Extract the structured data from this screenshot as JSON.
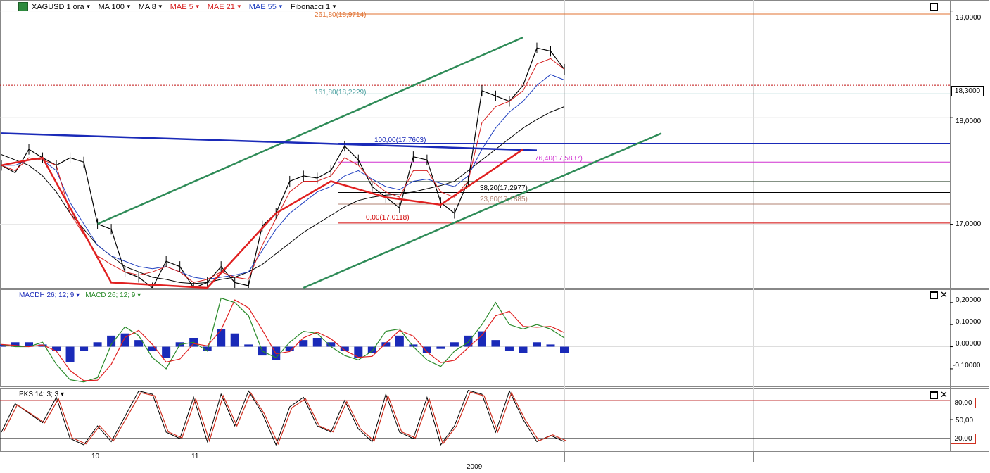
{
  "header": {
    "symbol": "XAGUSD 1 óra",
    "indicators": [
      "MA 100",
      "MA 8",
      "MAE 5",
      "MAE 21",
      "MAE 55",
      "Fibonacci 1"
    ],
    "indicator_colors": [
      "#000000",
      "#000000",
      "#d62020",
      "#d62020",
      "#2040c0",
      "#000000"
    ]
  },
  "price_axis": {
    "labels": [
      "19,0000",
      "18,0000",
      "17,0000"
    ],
    "current_price": "18,3000"
  },
  "fibonacci": [
    {
      "label": "261,80(18,9714)",
      "color": "#e07030"
    },
    {
      "label": "161,80(18,2229)",
      "color": "#4aa0a0"
    },
    {
      "label": "100,00(17,7603)",
      "color": "#1a2ab8"
    },
    {
      "label": "76,40(17,5837)",
      "color": "#d030d0"
    },
    {
      "label": "38,20(17,2977)",
      "color": "#000000"
    },
    {
      "label": "23,60(17,1885)",
      "color": "#b08070"
    },
    {
      "label": "0,00(17,0118)",
      "color": "#d00000"
    }
  ],
  "macd_panel": {
    "legend": [
      "MACDH 26; 12; 9",
      "MACD 26; 12; 9"
    ],
    "legend_colors": [
      "#1a2ab8",
      "#2a8a2a"
    ],
    "axis_labels": [
      "0,20000",
      "0,10000",
      "0,00000",
      "-0,10000"
    ]
  },
  "pks_panel": {
    "legend": "PKS 14; 3; 3",
    "axis_labels": [
      "80,00",
      "50,00",
      "20,00"
    ]
  },
  "x_axis": {
    "labels": [
      "10",
      "11"
    ],
    "year": "2009"
  },
  "chart_data": [
    {
      "type": "line",
      "title": "XAGUSD 1 óra",
      "ylim": [
        16.4,
        19.1
      ],
      "series": [
        {
          "name": "XAGUSD 1 óra",
          "color": "#000000",
          "values": [
            17.55,
            17.48,
            17.7,
            17.62,
            17.55,
            17.62,
            17.58,
            17.0,
            16.95,
            16.55,
            16.5,
            16.4,
            16.65,
            16.6,
            16.4,
            16.45,
            16.6,
            16.45,
            16.42,
            16.98,
            17.1,
            17.4,
            17.45,
            17.43,
            17.5,
            17.73,
            17.6,
            17.35,
            17.25,
            17.15,
            17.63,
            17.6,
            17.2,
            17.1,
            17.4,
            18.25,
            18.2,
            18.15,
            18.3,
            18.65,
            18.62,
            18.45
          ]
        },
        {
          "name": "MA 100",
          "color": "#000000",
          "values": [
            17.65,
            17.6,
            17.55,
            17.45,
            17.3,
            17.1,
            16.95,
            16.8,
            16.7,
            16.6,
            16.55,
            16.5,
            16.48,
            16.45,
            16.44,
            16.45,
            16.48,
            16.5,
            16.55,
            16.62,
            16.72,
            16.82,
            16.92,
            17.0,
            17.08,
            17.16,
            17.22,
            17.25,
            17.27,
            17.28,
            17.3,
            17.33,
            17.36,
            17.4,
            17.5,
            17.6,
            17.7,
            17.8,
            17.9,
            17.98,
            18.05,
            18.1
          ]
        },
        {
          "name": "MAE 55",
          "color": "#2040c0",
          "values": [
            17.55,
            17.55,
            17.6,
            17.6,
            17.5,
            17.2,
            17.0,
            16.8,
            16.7,
            16.65,
            16.6,
            16.58,
            16.6,
            16.55,
            16.5,
            16.48,
            16.5,
            16.52,
            16.55,
            16.75,
            16.95,
            17.1,
            17.2,
            17.3,
            17.35,
            17.45,
            17.5,
            17.42,
            17.35,
            17.32,
            17.4,
            17.42,
            17.38,
            17.35,
            17.45,
            17.7,
            17.9,
            18.05,
            18.15,
            18.3,
            18.4,
            18.35
          ]
        },
        {
          "name": "MAE 21",
          "color": "#d62020",
          "values": [
            17.55,
            17.5,
            17.62,
            17.6,
            17.55,
            17.1,
            16.9,
            16.7,
            16.62,
            16.55,
            16.52,
            16.55,
            16.6,
            16.55,
            16.45,
            16.48,
            16.55,
            16.5,
            16.48,
            16.8,
            17.05,
            17.3,
            17.4,
            17.4,
            17.45,
            17.62,
            17.55,
            17.4,
            17.3,
            17.25,
            17.5,
            17.5,
            17.3,
            17.25,
            17.4,
            17.95,
            18.1,
            18.15,
            18.25,
            18.5,
            18.55,
            18.45
          ]
        }
      ],
      "trendlines": [
        {
          "name": "upper channel",
          "color": "#2e8b57",
          "points": [
            [
              7,
              17.0
            ],
            [
              38,
              18.75
            ]
          ]
        },
        {
          "name": "lower channel",
          "color": "#2e8b57",
          "points": [
            [
              22,
              16.4
            ],
            [
              45,
              17.85
            ]
          ]
        },
        {
          "name": "blue resistance",
          "color": "#1a2ab8",
          "points": [
            [
              0,
              17.85
            ],
            [
              39,
              17.69
            ]
          ]
        }
      ],
      "fib_levels": [
        18.9714,
        18.2229,
        17.7603,
        17.5837,
        17.4,
        17.3977,
        17.2977,
        17.1885,
        17.0118
      ]
    },
    {
      "type": "bar",
      "title": "MACDH 26; 12; 9",
      "ylim": [
        -0.18,
        0.26
      ],
      "series": [
        {
          "name": "MACDH 26; 12; 9",
          "color": "#1a2ab8",
          "values": [
            0.01,
            0.02,
            0.02,
            0.01,
            -0.02,
            -0.07,
            -0.02,
            0.02,
            0.05,
            0.06,
            0.03,
            -0.02,
            -0.05,
            0.02,
            0.04,
            -0.02,
            0.08,
            0.06,
            0.01,
            -0.04,
            -0.06,
            -0.02,
            0.03,
            0.04,
            0.02,
            -0.02,
            -0.05,
            -0.03,
            0.02,
            0.05,
            0.01,
            -0.03,
            -0.01,
            0.02,
            0.05,
            0.07,
            0.03,
            -0.02,
            -0.03,
            0.02,
            0.01,
            -0.03
          ]
        },
        {
          "name": "MACD 26; 12; 9",
          "color": "#2a8a2a",
          "values": [
            0.01,
            0.0,
            0.0,
            0.02,
            -0.08,
            -0.15,
            -0.16,
            -0.14,
            0.01,
            0.09,
            0.05,
            -0.05,
            -0.1,
            0.01,
            0.02,
            -0.02,
            0.22,
            0.2,
            0.14,
            -0.02,
            -0.05,
            0.02,
            0.07,
            0.06,
            0.0,
            -0.04,
            -0.06,
            -0.02,
            0.07,
            0.08,
            0.0,
            -0.06,
            -0.09,
            -0.02,
            0.02,
            0.1,
            0.2,
            0.1,
            0.08,
            0.1,
            0.08,
            0.04
          ]
        }
      ]
    },
    {
      "type": "line",
      "title": "PKS 14; 3; 3",
      "ylim": [
        0,
        100
      ],
      "series": [
        {
          "name": "PKS 14; 3; 3",
          "color": "#d03020",
          "values": [
            30,
            75,
            60,
            45,
            85,
            20,
            10,
            40,
            15,
            55,
            95,
            90,
            30,
            20,
            85,
            15,
            90,
            40,
            95,
            60,
            10,
            70,
            85,
            40,
            30,
            80,
            35,
            15,
            90,
            30,
            20,
            85,
            10,
            40,
            96,
            90,
            30,
            95,
            50,
            15,
            25,
            15
          ]
        }
      ],
      "levels": [
        80,
        20
      ]
    }
  ]
}
